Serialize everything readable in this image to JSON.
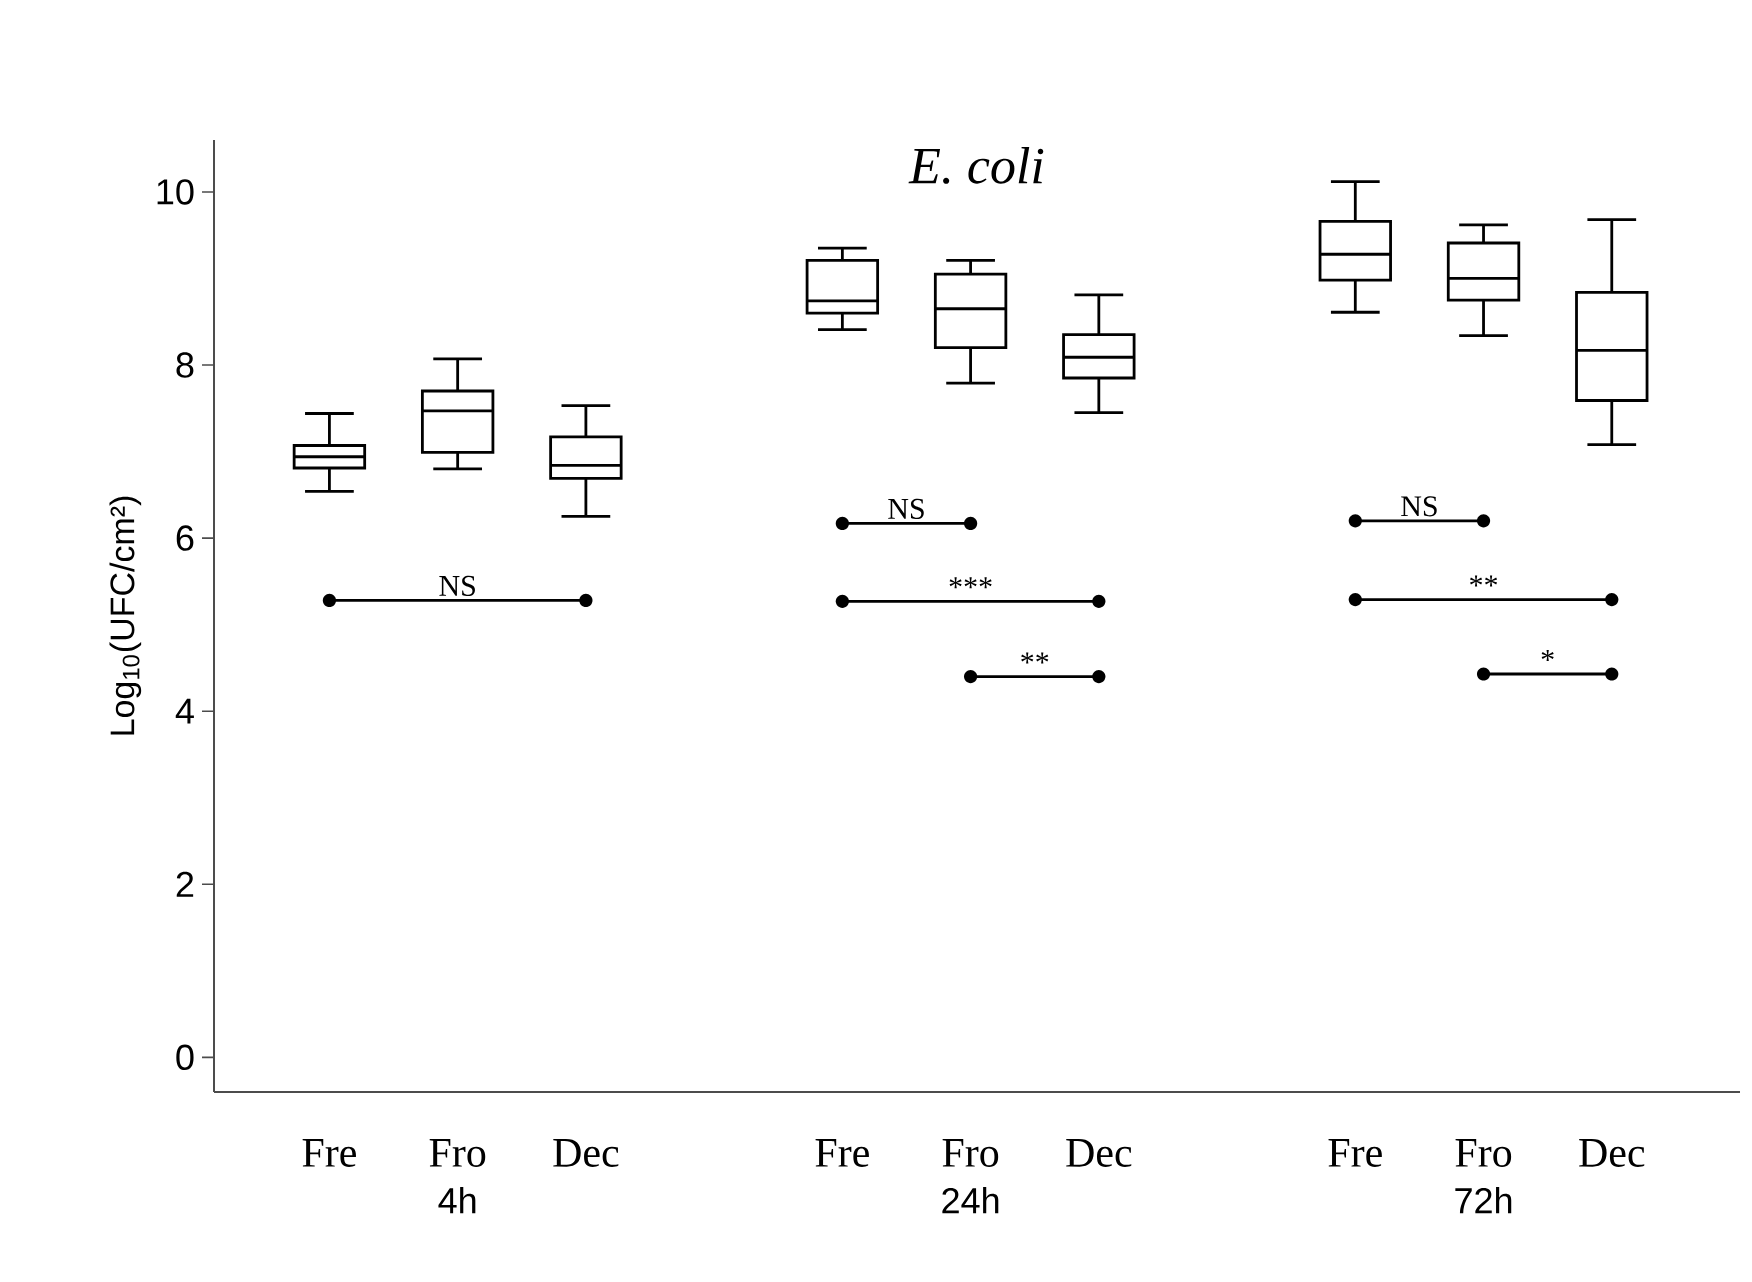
{
  "chart_data": {
    "type": "box",
    "title": "*E. coli*",
    "ylabel": "Log$_{10}$(UFC/cm²)",
    "categories": [
      "Fre",
      "Fro",
      "Dec",
      null,
      "Fre",
      "Fro",
      "Dec",
      null,
      "Fre",
      "Fro",
      "Dec"
    ],
    "color": "#000000",
    "boxes": [
      {
        "low": 6.54,
        "q1": 6.81,
        "median": 6.94,
        "q3": 7.07,
        "high": 7.44
      },
      {
        "low": 6.8,
        "q1": 6.99,
        "median": 7.47,
        "q3": 7.7,
        "high": 8.07
      },
      {
        "low": 6.25,
        "q1": 6.69,
        "median": 6.84,
        "q3": 7.17,
        "high": 7.53
      },
      null,
      {
        "low": 8.41,
        "q1": 8.6,
        "median": 8.74,
        "q3": 9.21,
        "high": 9.35
      },
      {
        "low": 7.79,
        "q1": 8.2,
        "median": 8.65,
        "q3": 9.05,
        "high": 9.21
      },
      {
        "low": 7.45,
        "q1": 7.85,
        "median": 8.09,
        "q3": 8.35,
        "high": 8.81
      },
      null,
      {
        "low": 8.61,
        "q1": 8.98,
        "median": 9.28,
        "q3": 9.66,
        "high": 10.12
      },
      {
        "low": 8.34,
        "q1": 8.75,
        "median": 9.0,
        "q3": 9.41,
        "high": 9.62
      },
      {
        "low": 7.08,
        "q1": 7.59,
        "median": 8.17,
        "q3": 8.84,
        "high": 9.68
      }
    ],
    "ylim": [
      -0.4,
      10.6
    ],
    "yticks": [
      0,
      2,
      4,
      6,
      8,
      10
    ],
    "annotations": [
      "4h",
      "24h",
      "72h",
      "NS",
      "NS",
      "***",
      "**",
      "NS",
      "**",
      "*"
    ]
  }
}
